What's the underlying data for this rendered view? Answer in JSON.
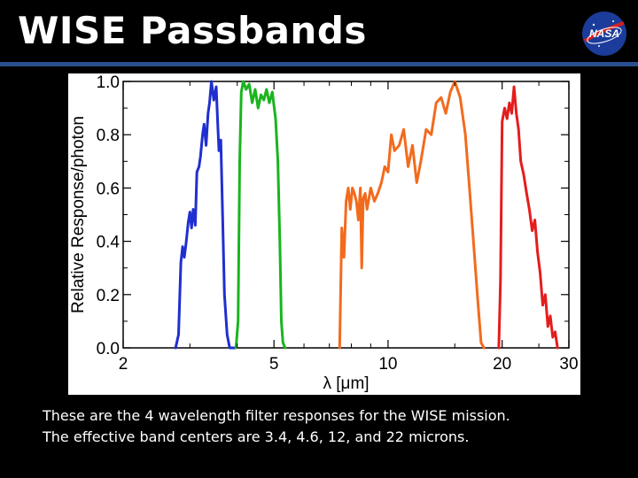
{
  "slide": {
    "title": "WISE Passbands",
    "caption_line1": "These are the 4 wavelength filter responses for the WISE mission.",
    "caption_line2": "The effective band centers are 3.4, 4.6, 12, and 22 microns.",
    "logo_text": "NASA",
    "logo_icon": "nasa-meatball-logo",
    "rule_color": "#2a4f8f"
  },
  "chart_data": {
    "type": "line",
    "title": "",
    "xlabel": "λ [μm]",
    "ylabel": "Relative Response/photon",
    "xscale": "log",
    "xlim": [
      2,
      30
    ],
    "ylim": [
      0,
      1
    ],
    "xticks": [
      2,
      5,
      10,
      20,
      30
    ],
    "yticks": [
      0.0,
      0.2,
      0.4,
      0.6,
      0.8,
      1.0
    ],
    "ytick_labels": [
      "0.0",
      "0.2",
      "0.4",
      "0.6",
      "0.8",
      "1.0"
    ],
    "grid": false,
    "legend": "none",
    "series": [
      {
        "color": "#1f2fd0",
        "x": [
          2.75,
          2.8,
          2.84,
          2.87,
          2.9,
          2.93,
          2.97,
          3.0,
          3.03,
          3.06,
          3.1,
          3.13,
          3.17,
          3.2,
          3.24,
          3.27,
          3.31,
          3.35,
          3.38,
          3.42,
          3.47,
          3.52,
          3.55,
          3.58,
          3.62,
          3.66,
          3.7,
          3.76,
          3.82,
          3.88,
          3.94
        ],
        "y": [
          0.0,
          0.05,
          0.32,
          0.38,
          0.34,
          0.39,
          0.47,
          0.51,
          0.45,
          0.52,
          0.46,
          0.66,
          0.68,
          0.72,
          0.8,
          0.84,
          0.76,
          0.88,
          0.92,
          1.0,
          0.93,
          0.98,
          0.85,
          0.74,
          0.78,
          0.5,
          0.2,
          0.05,
          0.0,
          0.0,
          0.0
        ]
      },
      {
        "color": "#19b51e",
        "x": [
          3.97,
          4.02,
          4.06,
          4.1,
          4.15,
          4.22,
          4.3,
          4.38,
          4.46,
          4.54,
          4.62,
          4.7,
          4.78,
          4.86,
          4.95,
          5.05,
          5.12,
          5.18,
          5.23,
          5.28,
          5.35
        ],
        "y": [
          0.0,
          0.1,
          0.7,
          0.96,
          1.0,
          0.97,
          0.99,
          0.92,
          0.97,
          0.9,
          0.95,
          0.93,
          0.97,
          0.92,
          0.96,
          0.86,
          0.7,
          0.4,
          0.1,
          0.02,
          0.0
        ]
      },
      {
        "color": "#f26b1d",
        "x": [
          7.45,
          7.55,
          7.65,
          7.75,
          7.85,
          7.95,
          8.05,
          8.15,
          8.25,
          8.35,
          8.45,
          8.52,
          8.6,
          8.7,
          8.8,
          9.0,
          9.2,
          9.4,
          9.6,
          9.8,
          10.0,
          10.2,
          10.4,
          10.7,
          11.0,
          11.3,
          11.6,
          11.9,
          12.2,
          12.6,
          13.0,
          13.4,
          13.8,
          14.2,
          14.6,
          15.0,
          15.5,
          16.0,
          16.4,
          16.8,
          17.2,
          17.6,
          17.9
        ],
        "y": [
          0.0,
          0.45,
          0.34,
          0.55,
          0.6,
          0.52,
          0.6,
          0.58,
          0.55,
          0.48,
          0.6,
          0.3,
          0.56,
          0.58,
          0.52,
          0.6,
          0.55,
          0.58,
          0.62,
          0.68,
          0.66,
          0.8,
          0.74,
          0.76,
          0.82,
          0.68,
          0.76,
          0.62,
          0.7,
          0.82,
          0.8,
          0.92,
          0.94,
          0.88,
          0.96,
          1.0,
          0.94,
          0.8,
          0.6,
          0.4,
          0.2,
          0.02,
          0.0
        ]
      },
      {
        "color": "#e41d1d",
        "x": [
          19.6,
          19.8,
          20.0,
          20.3,
          20.6,
          20.9,
          21.2,
          21.5,
          21.8,
          22.1,
          22.4,
          22.8,
          23.2,
          23.6,
          24.0,
          24.4,
          24.8,
          25.2,
          25.6,
          26.0,
          26.4,
          26.8,
          27.2,
          27.6,
          28.0
        ],
        "y": [
          0.0,
          0.25,
          0.85,
          0.9,
          0.86,
          0.92,
          0.88,
          0.98,
          0.88,
          0.82,
          0.7,
          0.65,
          0.58,
          0.52,
          0.44,
          0.48,
          0.36,
          0.28,
          0.16,
          0.2,
          0.08,
          0.12,
          0.04,
          0.06,
          0.0
        ]
      }
    ]
  }
}
